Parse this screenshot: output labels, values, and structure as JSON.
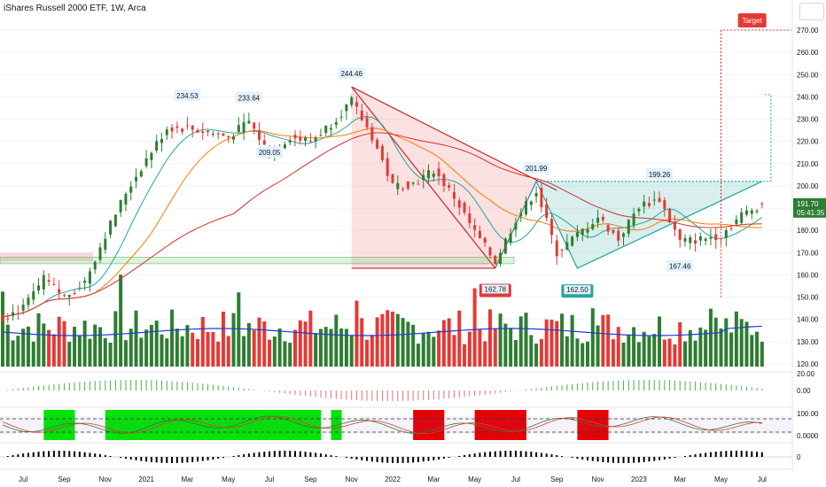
{
  "header": {
    "title": "iShares Russell 2000 ETF, 1W, Arca"
  },
  "colors": {
    "up": "#2e7d32",
    "down": "#e53935",
    "ma_fast": "#26a69a",
    "ma_mid": "#f57c00",
    "ma_slow": "#d32f2f",
    "vol_ma": "#1e3cd8",
    "target": "#e53935",
    "stoch_zone_green": "#00e600",
    "stoch_zone_red": "#e60000"
  },
  "chart_data": {
    "type": "candlestick",
    "yaxis": {
      "range": [
        117,
        277
      ],
      "ticks": [
        "270.00",
        "260.00",
        "250.00",
        "240.00",
        "230.00",
        "220.00",
        "210.00",
        "200.00",
        "190.00",
        "180.00",
        "170.00",
        "160.00",
        "150.00",
        "140.00",
        "130.00",
        "120.00"
      ]
    },
    "xaxis": {
      "ticks": [
        "Jul",
        "Sep",
        "Nov",
        "2021",
        "Mar",
        "May",
        "Jul",
        "Sep",
        "Nov",
        "2022",
        "Mar",
        "May",
        "Jul",
        "Sep",
        "Nov",
        "2023",
        "Mar",
        "May",
        "Jul"
      ]
    },
    "close_path": [
      [
        "2020-06",
        141
      ],
      [
        "2020-07",
        145
      ],
      [
        "2020-08",
        158
      ],
      [
        "2020-09",
        150
      ],
      [
        "2020-10",
        157
      ],
      [
        "2020-11",
        178
      ],
      [
        "2020-12",
        197
      ],
      [
        "2021-01",
        212
      ],
      [
        "2021-02",
        226
      ],
      [
        "2021-03",
        226
      ],
      [
        "2021-04",
        224
      ],
      [
        "2021-05",
        222
      ],
      [
        "2021-06",
        229
      ],
      [
        "2021-07",
        214
      ],
      [
        "2021-08",
        222
      ],
      [
        "2021-09",
        220
      ],
      [
        "2021-10",
        228
      ],
      [
        "2021-11",
        238
      ],
      [
        "2021-12",
        222
      ],
      [
        "2022-01",
        200
      ],
      [
        "2022-02",
        201
      ],
      [
        "2022-03",
        207
      ],
      [
        "2022-04",
        195
      ],
      [
        "2022-05",
        179
      ],
      [
        "2022-06",
        166
      ],
      [
        "2022-07",
        185
      ],
      [
        "2022-08",
        198
      ],
      [
        "2022-09",
        170
      ],
      [
        "2022-10",
        178
      ],
      [
        "2022-11",
        186
      ],
      [
        "2022-12",
        176
      ],
      [
        "2023-01",
        191
      ],
      [
        "2023-02",
        194
      ],
      [
        "2023-03",
        175
      ],
      [
        "2023-04",
        176
      ],
      [
        "2023-05",
        178
      ],
      [
        "2023-06",
        187
      ],
      [
        "2023-07",
        192
      ]
    ],
    "price_labels": [
      {
        "text": "234.53",
        "date": "2021-03"
      },
      {
        "text": "233.64",
        "date": "2021-06"
      },
      {
        "text": "209.05",
        "date": "2021-07"
      },
      {
        "text": "244.46",
        "date": "2021-11"
      },
      {
        "text": "201.99",
        "date": "2022-08"
      },
      {
        "text": "199.26",
        "date": "2023-02"
      },
      {
        "text": "167.46",
        "date": "2023-03"
      }
    ],
    "bottom_labels": [
      {
        "text": "162.78",
        "date": "2022-06"
      },
      {
        "text": "162.50",
        "date": "2022-10"
      }
    ],
    "current_price": {
      "price": "191.70",
      "countdown": "05:41:35"
    },
    "target_label": "Target",
    "target_price": 270,
    "ma_labels": [
      "20.00",
      "0.00"
    ],
    "stoch_labels": [
      "100.00",
      "0.0000"
    ],
    "osc_label": "0"
  }
}
